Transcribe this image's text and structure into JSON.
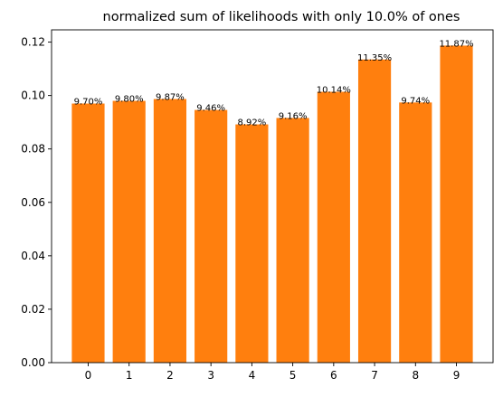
{
  "chart_data": {
    "type": "bar",
    "title": "normalized sum of likelihoods with only 10.0% of ones",
    "xlabel": "",
    "ylabel": "",
    "categories": [
      "0",
      "1",
      "2",
      "3",
      "4",
      "5",
      "6",
      "7",
      "8",
      "9"
    ],
    "values": [
      0.097,
      0.098,
      0.0987,
      0.0946,
      0.0892,
      0.0916,
      0.1014,
      0.1135,
      0.0974,
      0.1187
    ],
    "data_labels": [
      "9.70%",
      "9.80%",
      "9.87%",
      "9.46%",
      "8.92%",
      "9.16%",
      "10.14%",
      "11.35%",
      "9.74%",
      "11.87%"
    ],
    "y_ticks": [
      0.0,
      0.02,
      0.04,
      0.06,
      0.08,
      0.1,
      0.12
    ],
    "y_tick_labels": [
      "0.00",
      "0.02",
      "0.04",
      "0.06",
      "0.08",
      "0.10",
      "0.12"
    ],
    "ylim": [
      0,
      0.1246
    ],
    "xlim": [
      -0.895,
      9.895
    ],
    "grid": false,
    "legend": "none",
    "colors": {
      "bar": "#ff7f0e",
      "axes": "#000000",
      "background": "#ffffff"
    }
  }
}
